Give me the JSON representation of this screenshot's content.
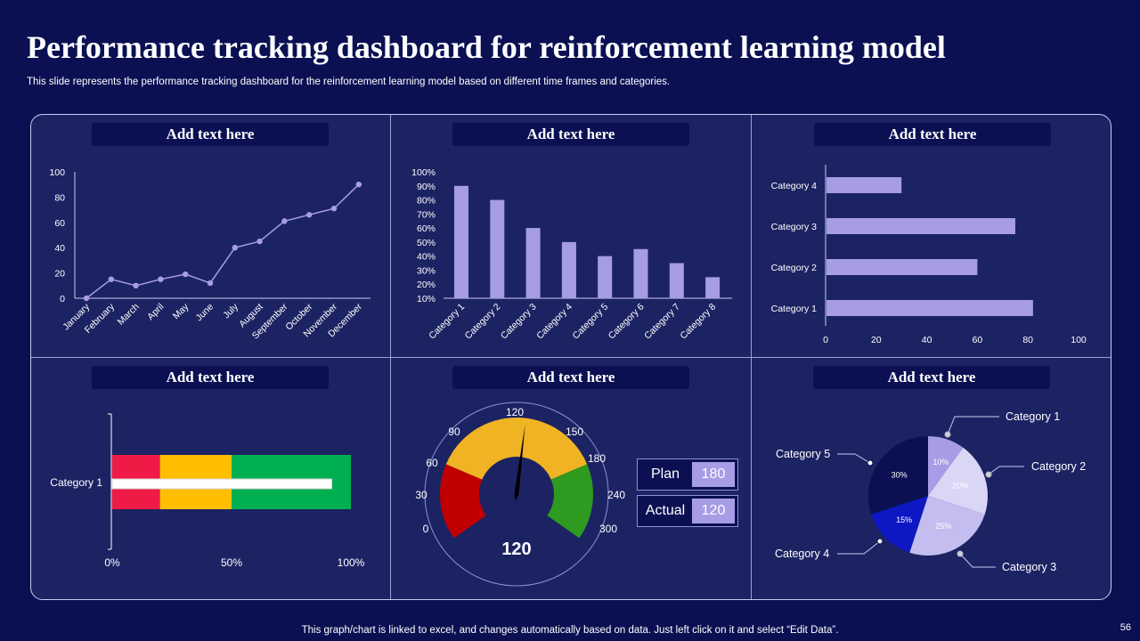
{
  "header": {
    "title": "Performance tracking dashboard for reinforcement learning model",
    "subtitle": "This slide represents the performance tracking dashboard for the reinforcement learning model based on different time frames and categories."
  },
  "footer": {
    "note": "This graph/chart is linked to excel,  and changes automatically based on data. Just left click on it and select “Edit Data”.",
    "page_number": "56"
  },
  "panels": {
    "p1_label": "Add text here",
    "p2_label": "Add text here",
    "p3_label": "Add text here",
    "p4_label": "Add text here",
    "p5_label": "Add text here",
    "p6_label": "Add text here"
  },
  "colors": {
    "background": "#0a1052",
    "panel": "#1c2363",
    "accent": "#a79ce6",
    "red": "#ef1a45",
    "amber": "#ffbf00",
    "green": "#00b050",
    "gauge_red": "#c00000",
    "gauge_yellow": "#f0b323",
    "gauge_green": "#2e9a1f"
  },
  "plan_actual": {
    "plan_label": "Plan",
    "plan_value": "180",
    "actual_label": "Actual",
    "actual_value": "120"
  },
  "chart_data": [
    {
      "type": "line",
      "categories": [
        "January",
        "February",
        "March",
        "April",
        "May",
        "June",
        "July",
        "August",
        "September",
        "October",
        "November",
        "December"
      ],
      "values": [
        0,
        15,
        10,
        15,
        19,
        12,
        40,
        45,
        61,
        66,
        71,
        90
      ],
      "ylim": [
        0,
        100
      ],
      "yticks": [
        0,
        20,
        40,
        60,
        80,
        100
      ],
      "grid": false
    },
    {
      "type": "bar",
      "categories": [
        "Category 1",
        "Category 2",
        "Category 3",
        "Category 4",
        "Category 5",
        "Category 6",
        "Category 7",
        "Category 8"
      ],
      "values": [
        90,
        80,
        60,
        50,
        40,
        45,
        35,
        25
      ],
      "ylim": [
        10,
        100
      ],
      "yticks": [
        "10%",
        "20%",
        "30%",
        "40%",
        "50%",
        "60%",
        "70%",
        "80%",
        "90%",
        "100%"
      ],
      "grid": false
    },
    {
      "type": "bar",
      "orientation": "horizontal",
      "categories": [
        "Category 1",
        "Category 2",
        "Category 3",
        "Category 4"
      ],
      "values": [
        82,
        60,
        75,
        30
      ],
      "xlim": [
        0,
        100
      ],
      "xticks": [
        0,
        20,
        40,
        60,
        80,
        100
      ],
      "grid": false
    },
    {
      "type": "bar",
      "subtype": "bullet",
      "category": "Category 1",
      "bands": [
        {
          "from": 0,
          "to": 20,
          "color": "#ef1a45"
        },
        {
          "from": 20,
          "to": 50,
          "color": "#ffbf00"
        },
        {
          "from": 50,
          "to": 100,
          "color": "#00b050"
        }
      ],
      "value": 92,
      "xticks": [
        "0%",
        "50%",
        "100%"
      ]
    },
    {
      "type": "gauge",
      "min": 0,
      "max": 300,
      "value": 120,
      "tick_labels": [
        "0",
        "30",
        "60",
        "90",
        "120",
        "150",
        "180",
        "240",
        "300"
      ],
      "value_label": "120"
    },
    {
      "type": "pie",
      "labels": [
        "Category 1",
        "Category 2",
        "Category 3",
        "Category 4",
        "Category 5"
      ],
      "values": [
        10,
        20,
        25,
        15,
        30
      ],
      "value_labels": [
        "10%",
        "20%",
        "25%",
        "15%",
        "30%"
      ],
      "colors": [
        "#a79ce6",
        "#d9d6f6",
        "#c4bdef",
        "#0d18c4",
        "#0a1052"
      ]
    }
  ]
}
